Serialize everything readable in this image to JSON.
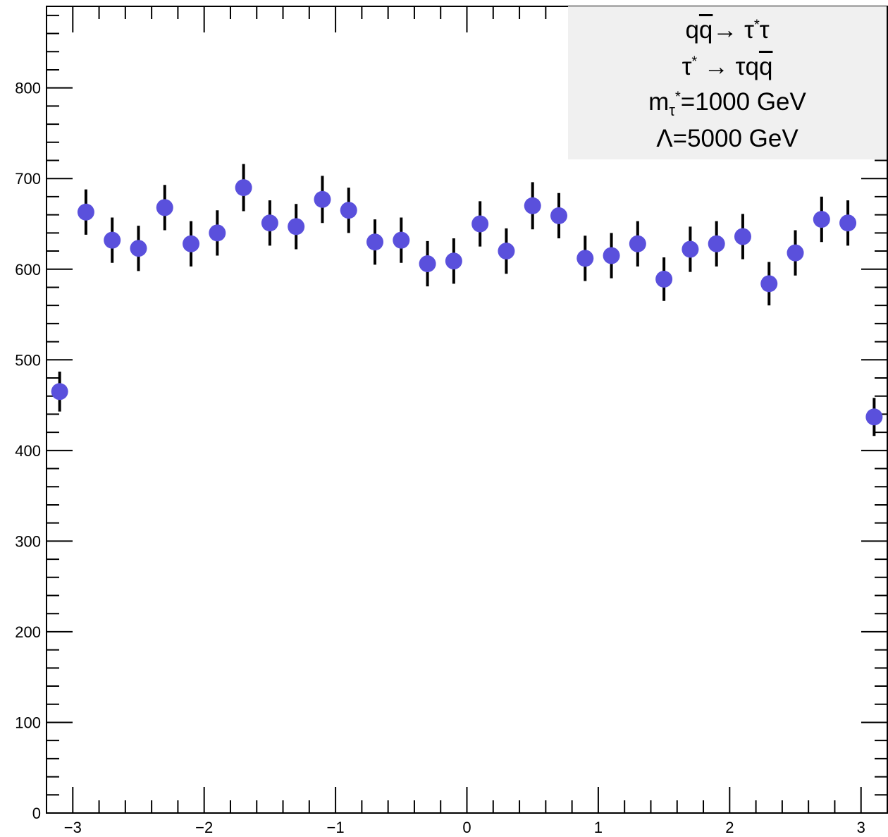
{
  "chart_data": {
    "type": "scatter",
    "title": "",
    "xlabel": "",
    "ylabel": "",
    "xlim": [
      -3.2,
      3.2
    ],
    "ylim": [
      0,
      890
    ],
    "x_ticks": [
      -3,
      -2,
      -1,
      0,
      1,
      2,
      3
    ],
    "x_tick_labels": [
      "−3",
      "−2",
      "−1",
      "0",
      "1",
      "2",
      "3"
    ],
    "y_ticks": [
      0,
      100,
      200,
      300,
      400,
      500,
      600,
      700,
      800
    ],
    "y_tick_labels": [
      "0",
      "100",
      "200",
      "300",
      "400",
      "500",
      "600",
      "700",
      "800"
    ],
    "grid": false,
    "marker_color": "#5a50dc",
    "errorbar_color": "#000000",
    "points": [
      {
        "x": -3.1,
        "y": 465,
        "err": 22
      },
      {
        "x": -2.9,
        "y": 663,
        "err": 25
      },
      {
        "x": -2.7,
        "y": 632,
        "err": 25
      },
      {
        "x": -2.5,
        "y": 623,
        "err": 25
      },
      {
        "x": -2.3,
        "y": 668,
        "err": 25
      },
      {
        "x": -2.1,
        "y": 628,
        "err": 25
      },
      {
        "x": -1.9,
        "y": 640,
        "err": 25
      },
      {
        "x": -1.7,
        "y": 690,
        "err": 26
      },
      {
        "x": -1.5,
        "y": 651,
        "err": 25
      },
      {
        "x": -1.3,
        "y": 647,
        "err": 25
      },
      {
        "x": -1.1,
        "y": 677,
        "err": 26
      },
      {
        "x": -0.9,
        "y": 665,
        "err": 25
      },
      {
        "x": -0.7,
        "y": 630,
        "err": 25
      },
      {
        "x": -0.5,
        "y": 632,
        "err": 25
      },
      {
        "x": -0.3,
        "y": 606,
        "err": 25
      },
      {
        "x": -0.1,
        "y": 609,
        "err": 25
      },
      {
        "x": 0.1,
        "y": 650,
        "err": 25
      },
      {
        "x": 0.3,
        "y": 620,
        "err": 25
      },
      {
        "x": 0.5,
        "y": 670,
        "err": 26
      },
      {
        "x": 0.7,
        "y": 659,
        "err": 25
      },
      {
        "x": 0.9,
        "y": 612,
        "err": 25
      },
      {
        "x": 1.1,
        "y": 615,
        "err": 25
      },
      {
        "x": 1.3,
        "y": 628,
        "err": 25
      },
      {
        "x": 1.5,
        "y": 589,
        "err": 24
      },
      {
        "x": 1.7,
        "y": 622,
        "err": 25
      },
      {
        "x": 1.9,
        "y": 628,
        "err": 25
      },
      {
        "x": 2.1,
        "y": 636,
        "err": 25
      },
      {
        "x": 2.3,
        "y": 584,
        "err": 24
      },
      {
        "x": 2.5,
        "y": 618,
        "err": 25
      },
      {
        "x": 2.7,
        "y": 655,
        "err": 25
      },
      {
        "x": 2.9,
        "y": 651,
        "err": 25
      },
      {
        "x": 3.1,
        "y": 437,
        "err": 21
      }
    ],
    "legend": {
      "placement": "top-right",
      "background": "#f0f0f0",
      "process": {
        "q": "q",
        "qbar": "q",
        "arrow": "→",
        "tau": "τ",
        "star": "*"
      },
      "decay": {
        "tau": "τ",
        "star": "*",
        "arrow": "→",
        "products": "τq",
        "qbar": "q"
      },
      "mass": {
        "m": "m",
        "sub_tau": "τ",
        "sub_star": "*",
        "value": "=1000 GeV"
      },
      "lambda": {
        "symbol": "Λ",
        "value": "=5000 GeV"
      }
    }
  }
}
